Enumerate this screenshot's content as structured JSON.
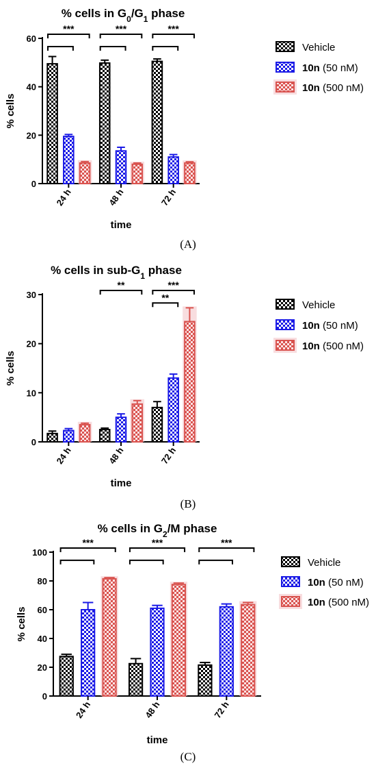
{
  "colors": {
    "vehicle": "#000000",
    "low": "#1a1ae6",
    "high": "#d9534f",
    "high_glow": "#f3c6c9"
  },
  "chart_data": [
    {
      "type": "bar",
      "panel": "(A)",
      "title_prefix": "% cells in G",
      "title_sub1": "0",
      "title_mid": "/G",
      "title_sub2": "1",
      "title_suffix": " phase",
      "xlabel": "time",
      "ylabel": "% cells",
      "ylim": [
        0,
        60
      ],
      "yticks": [
        "0",
        "20",
        "40",
        "60"
      ],
      "categories": [
        "24 h",
        "48 h",
        "72 h"
      ],
      "series": [
        {
          "name": "Vehicle",
          "values": [
            49.5,
            49.8,
            50.5
          ],
          "errors": [
            3.0,
            1.2,
            1.0
          ]
        },
        {
          "name_bold": "10n",
          "name_rest": " (50 nM)",
          "values": [
            19.5,
            13.5,
            11.0
          ],
          "errors": [
            0.8,
            1.5,
            1.0
          ]
        },
        {
          "name_bold": "10n",
          "name_rest": " (500 nM)",
          "values": [
            8.5,
            8.0,
            8.5
          ],
          "errors": [
            0.6,
            0.5,
            0.5
          ]
        }
      ],
      "significance": [
        {
          "cat": 0,
          "from": 0,
          "to": 1,
          "level": 1,
          "label": ""
        },
        {
          "cat": 0,
          "from": 0,
          "to": 2,
          "level": 2,
          "label": "***"
        },
        {
          "cat": 1,
          "from": 0,
          "to": 1,
          "level": 1,
          "label": ""
        },
        {
          "cat": 1,
          "from": 0,
          "to": 2,
          "level": 2,
          "label": "***"
        },
        {
          "cat": 2,
          "from": 0,
          "to": 1,
          "level": 1,
          "label": ""
        },
        {
          "cat": 2,
          "from": 0,
          "to": 2,
          "level": 2,
          "label": "***"
        }
      ]
    },
    {
      "type": "bar",
      "panel": "(B)",
      "title_prefix": "% cells in sub-G",
      "title_sub1": "1",
      "title_mid": "",
      "title_sub2": "",
      "title_suffix": " phase",
      "xlabel": "time",
      "ylabel": "% cells",
      "ylim": [
        0,
        30
      ],
      "yticks": [
        "0",
        "10",
        "20",
        "30"
      ],
      "categories": [
        "24 h",
        "48 h",
        "72 h"
      ],
      "series": [
        {
          "name": "Vehicle",
          "values": [
            1.7,
            2.5,
            7.0
          ],
          "errors": [
            0.5,
            0.3,
            1.2
          ]
        },
        {
          "name_bold": "10n",
          "name_rest": " (50 nM)",
          "values": [
            2.3,
            5.0,
            13.0
          ],
          "errors": [
            0.4,
            0.7,
            0.8
          ]
        },
        {
          "name_bold": "10n",
          "name_rest": " (500 nM)",
          "values": [
            3.5,
            7.7,
            24.5
          ],
          "errors": [
            0.3,
            0.7,
            2.8
          ]
        }
      ],
      "significance": [
        {
          "cat": 1,
          "from": 0,
          "to": 2,
          "level": 2,
          "label": "**"
        },
        {
          "cat": 2,
          "from": 0,
          "to": 1,
          "level": 1,
          "label": "**"
        },
        {
          "cat": 2,
          "from": 0,
          "to": 2,
          "level": 2,
          "label": "***"
        }
      ]
    },
    {
      "type": "bar",
      "panel": "(C)",
      "title_prefix": "% cells in G",
      "title_sub1": "2",
      "title_mid": "/M",
      "title_sub2": "",
      "title_suffix": " phase",
      "xlabel": "time",
      "ylabel": "% cells",
      "ylim": [
        0,
        100
      ],
      "yticks": [
        "0",
        "20",
        "40",
        "60",
        "80",
        "100"
      ],
      "categories": [
        "24 h",
        "48 h",
        "72 h"
      ],
      "series": [
        {
          "name": "Vehicle",
          "values": [
            27.5,
            22.5,
            21.5
          ],
          "errors": [
            1.5,
            3.5,
            1.8
          ]
        },
        {
          "name_bold": "10n",
          "name_rest": " (50 nM)",
          "values": [
            60.0,
            61.0,
            62.0
          ],
          "errors": [
            5.0,
            2.0,
            2.0
          ]
        },
        {
          "name_bold": "10n",
          "name_rest": " (500 nM)",
          "values": [
            81.5,
            77.5,
            63.5
          ],
          "errors": [
            0.8,
            1.0,
            1.5
          ]
        }
      ],
      "significance": [
        {
          "cat": 0,
          "from": 0,
          "to": 1,
          "level": 1,
          "label": ""
        },
        {
          "cat": 0,
          "from": 0,
          "to": 2,
          "level": 2,
          "label": "***"
        },
        {
          "cat": 1,
          "from": 0,
          "to": 1,
          "level": 1,
          "label": ""
        },
        {
          "cat": 1,
          "from": 0,
          "to": 2,
          "level": 2,
          "label": "***"
        },
        {
          "cat": 2,
          "from": 0,
          "to": 1,
          "level": 1,
          "label": ""
        },
        {
          "cat": 2,
          "from": 0,
          "to": 2,
          "level": 2,
          "label": "***"
        }
      ]
    }
  ]
}
